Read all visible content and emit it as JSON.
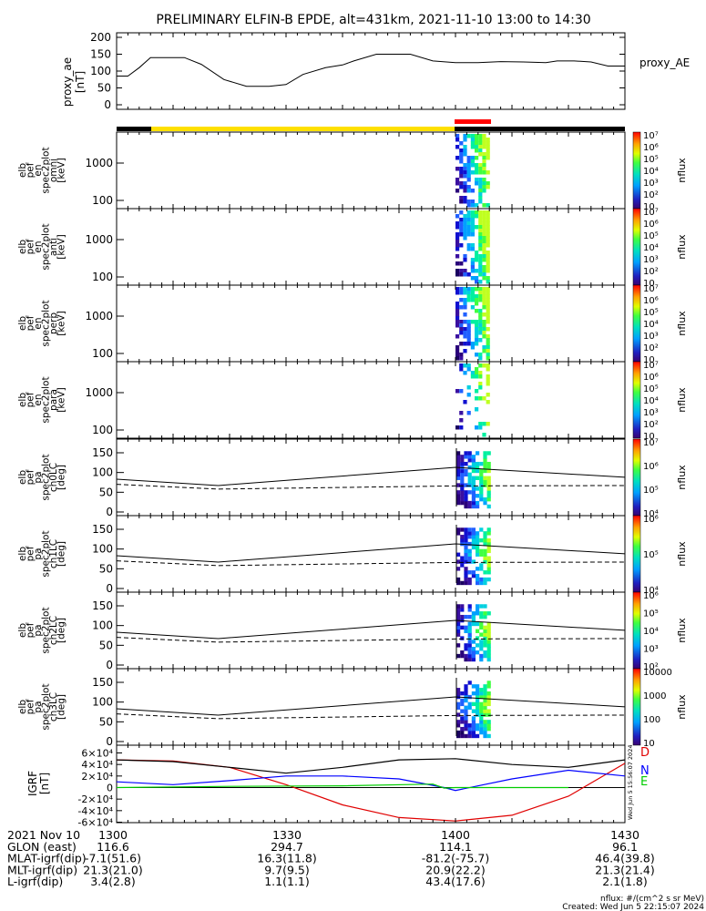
{
  "title": "PRELIMINARY ELFIN-B EPDE, alt=431km, 2021-11-10 13:00 to 14:30",
  "colors": {
    "state_black": "#000000",
    "state_yellow": "#ffe000",
    "state_red": "#ff0000",
    "igrf_d": "#e00000",
    "igrf_n": "#0000ff",
    "igrf_e": "#00cc00",
    "igrf_total": "#000000"
  },
  "chart_data": [
    {
      "id": "proxy_ae",
      "type": "line",
      "ylabel": [
        "proxy_ae",
        "[nT]"
      ],
      "legend": "proxy_AE",
      "yticks": [
        "0",
        "50",
        "100",
        "150",
        "200"
      ],
      "ylim": [
        0,
        210
      ],
      "x": [
        "13:00",
        "13:02",
        "13:04",
        "13:06",
        "13:08",
        "13:12",
        "13:15",
        "13:19",
        "13:23",
        "13:27",
        "13:30",
        "13:33",
        "13:37",
        "13:40",
        "13:42",
        "13:46",
        "13:49",
        "13:52",
        "13:56",
        "14:00",
        "14:04",
        "14:08",
        "14:12",
        "14:16",
        "14:18",
        "14:21",
        "14:24",
        "14:27",
        "14:30"
      ],
      "values": [
        85,
        85,
        110,
        140,
        140,
        140,
        120,
        75,
        55,
        55,
        60,
        90,
        110,
        118,
        130,
        150,
        150,
        150,
        130,
        125,
        125,
        128,
        127,
        125,
        130,
        130,
        127,
        115,
        115
      ]
    },
    {
      "id": "spectra",
      "type": "heatmap",
      "panels": [
        {
          "ylabel": [
            "elb",
            "pef",
            "en",
            "spec2plot",
            "omni",
            "[keV]"
          ],
          "yticks": [
            "100",
            "1000"
          ],
          "colorbar_ticks": [
            "10",
            "10²",
            "10³",
            "10⁴",
            "10⁵",
            "10⁶",
            "10⁷"
          ],
          "colorbar_label": "nflux"
        },
        {
          "ylabel": [
            "elb",
            "pef",
            "en",
            "spec2plot",
            "anti",
            "[keV]"
          ],
          "yticks": [
            "100",
            "1000"
          ],
          "colorbar_ticks": [
            "10",
            "10²",
            "10³",
            "10⁴",
            "10⁵",
            "10⁶",
            "10⁷"
          ],
          "colorbar_label": "nflux"
        },
        {
          "ylabel": [
            "elb",
            "pef",
            "en",
            "spec2plot",
            "perp",
            "[keV]"
          ],
          "yticks": [
            "100",
            "1000"
          ],
          "colorbar_ticks": [
            "10",
            "10²",
            "10³",
            "10⁴",
            "10⁵",
            "10⁶",
            "10⁷"
          ],
          "colorbar_label": "nflux"
        },
        {
          "ylabel": [
            "elb",
            "pef",
            "en",
            "spec2plot",
            "para",
            "[keV]"
          ],
          "yticks": [
            "100",
            "1000"
          ],
          "colorbar_ticks": [
            "10",
            "10²",
            "10³",
            "10⁴",
            "10⁵",
            "10⁶",
            "10⁷"
          ],
          "colorbar_label": "nflux"
        }
      ]
    },
    {
      "id": "pitch_angle",
      "type": "heatmap",
      "yticks": [
        "0",
        "50",
        "100",
        "150"
      ],
      "panels": [
        {
          "ylabel": [
            "elb",
            "pef",
            "pa",
            "spec2plot",
            "ch0LC",
            "[deg]"
          ],
          "colorbar_ticks": [
            "10⁴",
            "10⁵",
            "10⁶",
            "10⁷"
          ],
          "colorbar_label": "nflux"
        },
        {
          "ylabel": [
            "elb",
            "pef",
            "pa",
            "spec2plot",
            "ch1LC",
            "[deg]"
          ],
          "colorbar_ticks": [
            "10⁴",
            "10⁵",
            "10⁶"
          ],
          "colorbar_label": "nflux"
        },
        {
          "ylabel": [
            "elb",
            "pef",
            "pa",
            "spec2plot",
            "ch2LC",
            "[deg]"
          ],
          "colorbar_ticks": [
            "10²",
            "10³",
            "10⁴",
            "10⁵",
            "10⁶"
          ],
          "colorbar_label": "nflux"
        },
        {
          "ylabel": [
            "elb",
            "pef",
            "pa",
            "spec2plot",
            "ch3LC",
            "[deg]"
          ],
          "colorbar_ticks": [
            "10",
            "100",
            "1000",
            "10000"
          ],
          "colorbar_label": "nflux"
        }
      ],
      "loss_cone_deg": {
        "x": [
          "13:00",
          "13:18",
          "14:00",
          "14:30"
        ],
        "values": [
          83,
          67,
          113,
          88
        ]
      },
      "anti_loss_cone_deg": {
        "x": [
          "13:00",
          "13:18",
          "14:00",
          "14:30"
        ],
        "values": [
          70,
          58,
          66,
          67
        ]
      }
    },
    {
      "id": "igrf",
      "type": "line",
      "ylabel": [
        "IGRF",
        "[nT]"
      ],
      "ylim": [
        -65000,
        65000
      ],
      "yticks": [
        "-6×10⁴",
        "-4×10⁴",
        "-2×10⁴",
        "0",
        "2×10⁴",
        "4×10⁴",
        "6×10⁴"
      ],
      "series": [
        {
          "name": "D",
          "x": [
            "13:00",
            "13:10",
            "13:20",
            "13:30",
            "13:40",
            "13:50",
            "14:00",
            "14:10",
            "14:20",
            "14:30"
          ],
          "values": [
            48000,
            46000,
            35000,
            5000,
            -30000,
            -52000,
            -58000,
            -48000,
            -15000,
            42000
          ]
        },
        {
          "name": "N",
          "x": [
            "13:00",
            "13:10",
            "13:20",
            "13:30",
            "13:40",
            "13:50",
            "13:58",
            "14:00",
            "14:10",
            "14:20",
            "14:30"
          ],
          "values": [
            10000,
            5000,
            12000,
            20000,
            20000,
            15000,
            0,
            -5000,
            15000,
            30000,
            20000
          ]
        },
        {
          "name": "E",
          "x": [
            "13:00",
            "13:20",
            "13:40",
            "13:56",
            "13:58",
            "14:00",
            "14:10",
            "14:20"
          ],
          "values": [
            0,
            2000,
            3000,
            6000,
            -1000,
            0,
            0,
            0
          ]
        },
        {
          "name": "",
          "x": [
            "13:00",
            "13:10",
            "13:20",
            "13:30",
            "13:40",
            "13:50",
            "14:00",
            "14:10",
            "14:20",
            "14:30"
          ],
          "values": [
            48000,
            45000,
            35000,
            25000,
            35000,
            48000,
            50000,
            40000,
            35000,
            48000
          ]
        }
      ],
      "side_text": "Wed Jun  5 15:56:07 2024"
    }
  ],
  "footer": {
    "rows": [
      [
        "2021 Nov 10",
        "1300",
        "1330",
        "1400",
        "1430"
      ],
      [
        "GLON (east)",
        "116.6",
        "294.7",
        "114.1",
        "96.1"
      ],
      [
        "MLAT-igrf(dip)",
        "-7.1(51.6)",
        "16.3(11.8)",
        "-81.2(-75.7)",
        "46.4(39.8)"
      ],
      [
        "MLT-igrf(dip)",
        "21.3(21.0)",
        "9.7(9.5)",
        "20.9(22.2)",
        "21.3(21.4)"
      ],
      [
        "L-igrf(dip)",
        "3.4(2.8)",
        "1.1(1.1)",
        "43.4(17.6)",
        "2.1(1.8)"
      ]
    ],
    "nflux_note": "nflux: #/(cm^2 s sr MeV)",
    "created": "Created: Wed Jun  5 22:15:07 2024"
  }
}
